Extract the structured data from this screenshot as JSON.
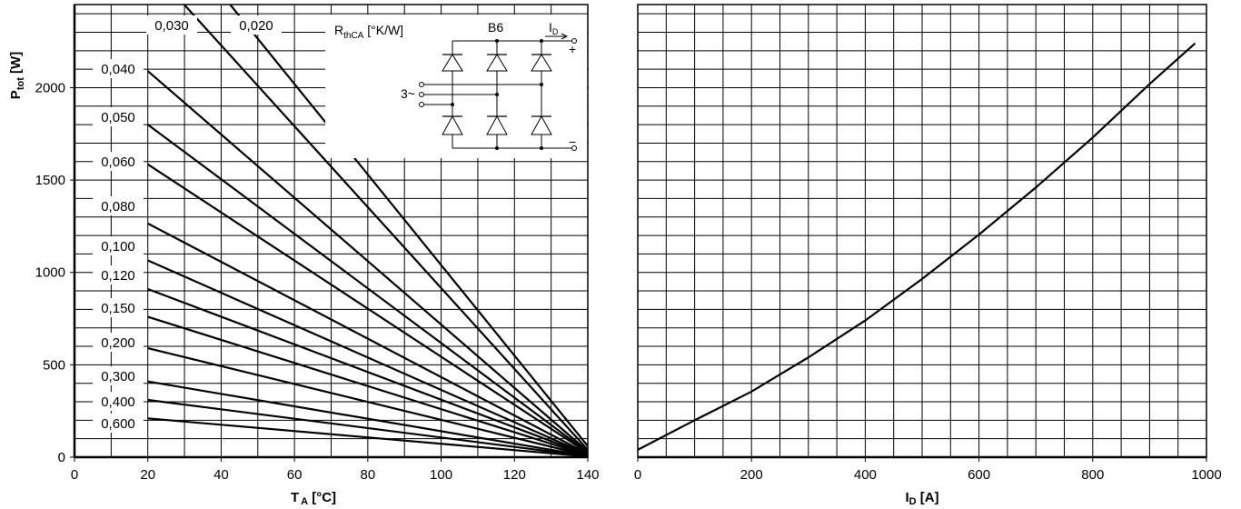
{
  "chart_data": [
    {
      "type": "line",
      "xlabel_main": "T",
      "xlabel_sub": "A",
      "xlabel_unit": " [°C]",
      "ylabel_main": "P",
      "ylabel_sub": "tot",
      "ylabel_unit": " [W]",
      "xlim": [
        0,
        140
      ],
      "ylim": [
        0,
        2450
      ],
      "x_ticks": [
        0,
        20,
        40,
        60,
        80,
        100,
        120,
        140
      ],
      "y_ticks": [
        0,
        500,
        1000,
        1500,
        2000
      ],
      "x_minor_step": 10,
      "y_minor_step": 100,
      "grid": true,
      "legend_title_main": "R",
      "legend_title_sub": "thCA",
      "legend_title_unit": " [°K/W]",
      "series": [
        {
          "name": "0,020",
          "x": [
            20,
            140
          ],
          "y": [
            3000,
            60
          ]
        },
        {
          "name": "0,030",
          "x": [
            20,
            140
          ],
          "y": [
            2667,
            40
          ]
        },
        {
          "name": "0,040",
          "x": [
            20,
            140
          ],
          "y": [
            2090,
            32
          ]
        },
        {
          "name": "0,050",
          "x": [
            20,
            140
          ],
          "y": [
            1800,
            27
          ]
        },
        {
          "name": "0,060",
          "x": [
            20,
            140
          ],
          "y": [
            1585,
            23
          ]
        },
        {
          "name": "0,080",
          "x": [
            20,
            140
          ],
          "y": [
            1265,
            18
          ]
        },
        {
          "name": "0,100",
          "x": [
            20,
            140
          ],
          "y": [
            1065,
            14
          ]
        },
        {
          "name": "0,120",
          "x": [
            20,
            140
          ],
          "y": [
            910,
            12
          ]
        },
        {
          "name": "0,150",
          "x": [
            20,
            140
          ],
          "y": [
            760,
            10
          ]
        },
        {
          "name": "0,200",
          "x": [
            20,
            140
          ],
          "y": [
            590,
            8
          ]
        },
        {
          "name": "0,300",
          "x": [
            20,
            140
          ],
          "y": [
            410,
            6
          ]
        },
        {
          "name": "0,400",
          "x": [
            20,
            140
          ],
          "y": [
            310,
            5
          ]
        },
        {
          "name": "0,600",
          "x": [
            20,
            140
          ],
          "y": [
            210,
            4
          ]
        }
      ],
      "inset": {
        "circuit_label": "B6",
        "ac_label": "3~",
        "current_main": "I",
        "current_sub": "D",
        "plus": "+",
        "minus": "−"
      }
    },
    {
      "type": "line",
      "xlabel_main": "I",
      "xlabel_sub": "D",
      "xlabel_unit": " [A]",
      "xlim": [
        0,
        1000
      ],
      "ylim": [
        0,
        2450
      ],
      "x_ticks": [
        0,
        200,
        400,
        600,
        800,
        1000
      ],
      "x_minor_step": 50,
      "y_minor_step": 100,
      "grid": true,
      "series": [
        {
          "x": [
            0,
            100,
            200,
            300,
            400,
            500,
            600,
            700,
            800,
            900,
            980
          ],
          "y": [
            40,
            200,
            355,
            540,
            740,
            965,
            1205,
            1460,
            1730,
            2020,
            2240
          ]
        }
      ]
    }
  ]
}
